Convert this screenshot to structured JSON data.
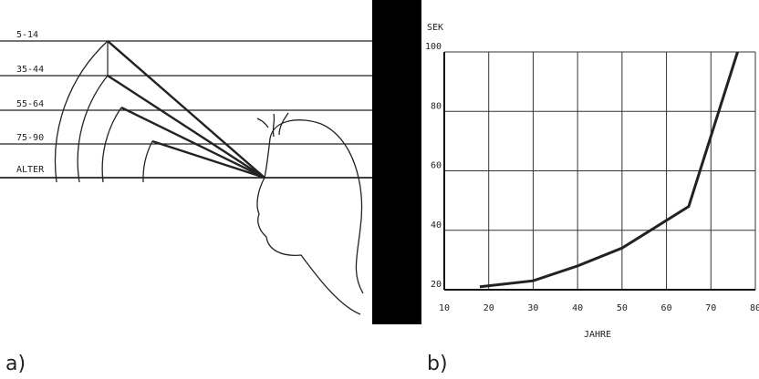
{
  "panels": [
    "a)",
    "b)"
  ],
  "diagram": {
    "age_labels": [
      "5-14",
      "35-44",
      "55-64",
      "75-90",
      "ALTER"
    ]
  },
  "chart_data": {
    "type": "line",
    "y_label": "SEK",
    "x_label": "JAHRE",
    "x": [
      18,
      30,
      40,
      50,
      65,
      76
    ],
    "series": [
      {
        "color": "#222222",
        "values": [
          21,
          23,
          28,
          34,
          48,
          100
        ]
      }
    ],
    "xlim": [
      10,
      80
    ],
    "xticks": [
      10,
      20,
      30,
      40,
      50,
      60,
      70,
      80
    ],
    "ylim": [
      20,
      100
    ],
    "yticks": [
      20,
      40,
      60,
      80,
      100
    ],
    "grid": true
  }
}
